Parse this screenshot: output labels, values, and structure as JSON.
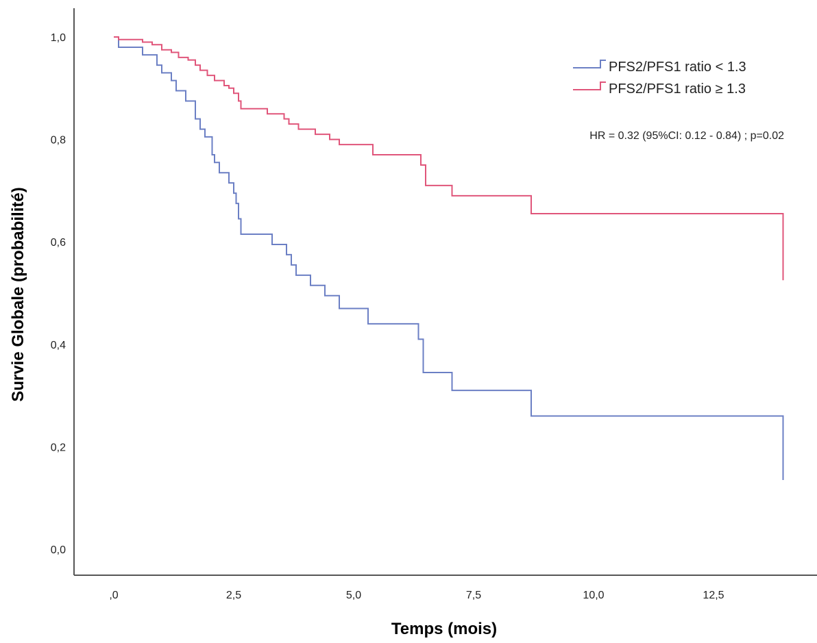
{
  "chart_data": {
    "type": "line",
    "xlabel": "Temps (mois)",
    "ylabel": "Survie Globale (probabilité)",
    "xlim": [
      0,
      14
    ],
    "ylim": [
      0,
      1
    ],
    "x_ticks": [
      0,
      2.5,
      5,
      7.5,
      10,
      12.5
    ],
    "x_tick_labels": [
      ",0",
      "2,5",
      "5,0",
      "7,5",
      "10,0",
      "12,5"
    ],
    "y_ticks": [
      0,
      0.2,
      0.4,
      0.6,
      0.8,
      1.0
    ],
    "y_tick_labels": [
      "0,0",
      "0,2",
      "0,4",
      "0,6",
      "0,8",
      "1,0"
    ],
    "grid": false,
    "legend_position": "top-right",
    "annotation": "HR = 0.32 (95%CI: 0.12 - 0.84) ; p=0.02",
    "series": [
      {
        "name": "PFS2/PFS1 ratio < 1.3",
        "color": "#6b7fc4",
        "step": true,
        "points": [
          [
            0,
            1.0
          ],
          [
            0.1,
            0.98
          ],
          [
            0.6,
            0.965
          ],
          [
            0.9,
            0.945
          ],
          [
            1.0,
            0.93
          ],
          [
            1.2,
            0.915
          ],
          [
            1.3,
            0.895
          ],
          [
            1.5,
            0.875
          ],
          [
            1.7,
            0.84
          ],
          [
            1.8,
            0.82
          ],
          [
            1.9,
            0.805
          ],
          [
            2.05,
            0.77
          ],
          [
            2.1,
            0.755
          ],
          [
            2.2,
            0.735
          ],
          [
            2.4,
            0.715
          ],
          [
            2.5,
            0.695
          ],
          [
            2.55,
            0.675
          ],
          [
            2.6,
            0.645
          ],
          [
            2.65,
            0.615
          ],
          [
            3.3,
            0.595
          ],
          [
            3.6,
            0.575
          ],
          [
            3.7,
            0.555
          ],
          [
            3.8,
            0.535
          ],
          [
            4.1,
            0.515
          ],
          [
            4.4,
            0.495
          ],
          [
            4.7,
            0.47
          ],
          [
            5.3,
            0.44
          ],
          [
            6.35,
            0.41
          ],
          [
            6.45,
            0.345
          ],
          [
            7.05,
            0.31
          ],
          [
            8.7,
            0.26
          ],
          [
            13.95,
            0.135
          ]
        ],
        "end_x": 13.95
      },
      {
        "name": "PFS2/PFS1 ratio ≥ 1.3",
        "color": "#e0557a",
        "step": true,
        "points": [
          [
            0,
            1.0
          ],
          [
            0.1,
            0.995
          ],
          [
            0.6,
            0.99
          ],
          [
            0.8,
            0.985
          ],
          [
            1.0,
            0.975
          ],
          [
            1.2,
            0.97
          ],
          [
            1.35,
            0.96
          ],
          [
            1.55,
            0.955
          ],
          [
            1.7,
            0.945
          ],
          [
            1.8,
            0.935
          ],
          [
            1.95,
            0.925
          ],
          [
            2.1,
            0.915
          ],
          [
            2.3,
            0.905
          ],
          [
            2.4,
            0.9
          ],
          [
            2.5,
            0.89
          ],
          [
            2.6,
            0.875
          ],
          [
            2.65,
            0.86
          ],
          [
            3.2,
            0.85
          ],
          [
            3.55,
            0.84
          ],
          [
            3.65,
            0.83
          ],
          [
            3.85,
            0.82
          ],
          [
            4.2,
            0.81
          ],
          [
            4.5,
            0.8
          ],
          [
            4.7,
            0.79
          ],
          [
            5.4,
            0.77
          ],
          [
            6.4,
            0.75
          ],
          [
            6.5,
            0.71
          ],
          [
            7.05,
            0.69
          ],
          [
            8.7,
            0.655
          ],
          [
            13.95,
            0.525
          ]
        ],
        "end_x": 13.95
      }
    ]
  }
}
